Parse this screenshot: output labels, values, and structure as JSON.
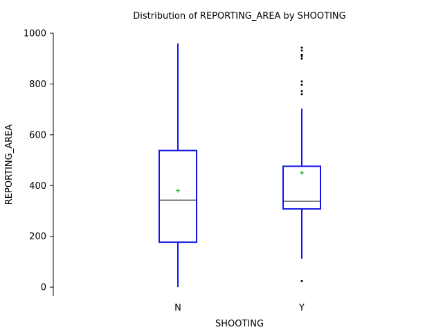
{
  "chart_data": {
    "type": "box",
    "title": "Distribution of REPORTING_AREA by SHOOTING",
    "xlabel": "SHOOTING",
    "ylabel": "REPORTING_AREA",
    "ylim": [
      -35,
      1000
    ],
    "yticks": [
      0,
      200,
      400,
      600,
      800,
      1000
    ],
    "categories": [
      "N",
      "Y"
    ],
    "series": [
      {
        "category": "N",
        "whisker_low": 0,
        "q1": 177,
        "median": 343,
        "q3": 538,
        "whisker_high": 960,
        "mean": 380,
        "outliers": []
      },
      {
        "category": "Y",
        "whisker_low": 112,
        "q1": 308,
        "median": 338,
        "q3": 476,
        "whisker_high": 703,
        "mean": 450,
        "outliers": [
          24,
          760,
          772,
          797,
          810,
          900,
          910,
          915,
          932,
          943
        ]
      }
    ],
    "grid": false,
    "colors": {
      "box": "#1414e6",
      "mean_marker": "#00b400",
      "outlier": "#000000",
      "median": "#000000",
      "axis": "#000000"
    }
  }
}
